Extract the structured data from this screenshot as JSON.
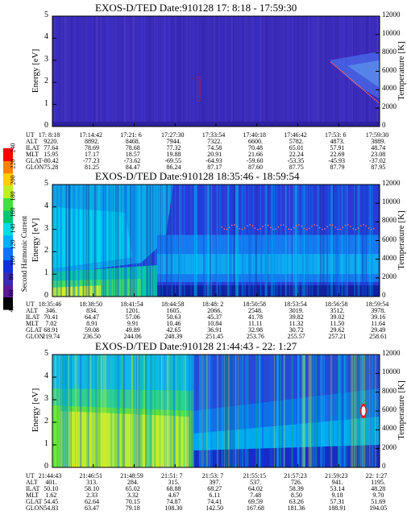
{
  "colors": {
    "bg_low": "#3a2ab8",
    "bg_mid": "#2f2fd8",
    "blue": "#1a4ad8",
    "cyan": "#00c8ff",
    "teal": "#10b0c0",
    "green": "#30e060",
    "yellow": "#e0f020",
    "orange": "#ffa000",
    "red": "#ff1010"
  },
  "colorbar": {
    "title": "Second Harmonic Current",
    "ticks": [
      "40",
      "60",
      "80",
      "100",
      "120",
      "140",
      "160",
      "180",
      "200",
      "220",
      "240"
    ],
    "colors": [
      "#000000",
      "#5a1a9a",
      "#3a2ab8",
      "#1030e0",
      "#1070ff",
      "#00b0ff",
      "#00e0e0",
      "#00c870",
      "#40e040",
      "#c0f020",
      "#ffd000",
      "#ff8000",
      "#ff0000"
    ]
  },
  "panels": [
    {
      "title": "EXOS-D/TED   Date:910128  17: 8:18 - 17:59:30",
      "ylabel": "Energy [eV]",
      "rlabel": "Temperature [K]",
      "yticks": [
        "0",
        "1",
        "2",
        "3",
        "4",
        "5"
      ],
      "rticks": [
        "0",
        "2000",
        "4000",
        "6000",
        "8000",
        "10000",
        "12000"
      ],
      "rows": [
        "UT",
        "ALT",
        "ILAT",
        "MLT",
        "GLAT",
        "GLON"
      ],
      "columns": [
        [
          "17: 8:18",
          "9220.",
          "77.64",
          "15.95",
          "-80.42",
          "75.28"
        ],
        [
          "17:14:42",
          "8892.",
          "78.69",
          "17.17",
          "-77.23",
          "81.25"
        ],
        [
          "17:21: 6",
          "8468.",
          "78.68",
          "18.57",
          "-73.62",
          "84.47"
        ],
        [
          "17:27:30",
          "7944.",
          "77.32",
          "19.88",
          "-69.55",
          "86.24"
        ],
        [
          "17:33:54",
          "7322.",
          "74.58",
          "20.91",
          "-64.93",
          "87.17"
        ],
        [
          "17:40:18",
          "6600.",
          "70.48",
          "21.66",
          "-59.60",
          "87.60"
        ],
        [
          "17:46:42",
          "5782.",
          "65.01",
          "22.24",
          "-53.35",
          "87.75"
        ],
        [
          "17:53: 6",
          "4873.",
          "57.91",
          "22.69",
          "-45.93",
          "87.79"
        ],
        [
          "17:59:30",
          "3889.",
          "48.74",
          "23.08",
          "-37.02",
          "87.95"
        ]
      ]
    },
    {
      "title": "EXOS-D/TED   Date:910128  18:35:46 - 18:59:54",
      "ylabel": "Energy [eV]",
      "rlabel": "Temperature [K]",
      "yticks": [
        "0",
        "1",
        "2",
        "3",
        "4",
        "5"
      ],
      "rticks": [
        "0",
        "2000",
        "4000",
        "6000",
        "8000",
        "10000",
        "12000"
      ],
      "rows": [
        "UT",
        "ALT",
        "ILAT",
        "MLT",
        "GLAT",
        "GLON"
      ],
      "columns": [
        [
          "18:35:46",
          "346.",
          "70.41",
          "7.02",
          "68.91",
          "219.74"
        ],
        [
          "18:38:50",
          "834.",
          "64.47",
          "8.91",
          "59.08",
          "236.50"
        ],
        [
          "18:41:54",
          "1201.",
          "57.06",
          "9.91",
          "49.89",
          "244.06"
        ],
        [
          "18:44:58",
          "1605.",
          "50.63",
          "10.46",
          "42.65",
          "248.39"
        ],
        [
          "18:48: 2",
          "2066.",
          "45.37",
          "10.84",
          "36.91",
          "251.45"
        ],
        [
          "18:50:58",
          "2548.",
          "41.78",
          "11.11",
          "32.98",
          "253.76"
        ],
        [
          "18:53:54",
          "3019.",
          "39.82",
          "11.32",
          "30.72",
          "255.57"
        ],
        [
          "18:56:58",
          "3512.",
          "39.02",
          "11.50",
          "29.62",
          "257.21"
        ],
        [
          "18:59:54",
          "3978.",
          "39.16",
          "11.64",
          "29.49",
          "258.61"
        ]
      ]
    },
    {
      "title": "EXOS-D/TED   Date:910128  21:44:43 - 22: 1:27",
      "ylabel": "Energy [eV]",
      "rlabel": "Temperature [K]",
      "yticks": [
        "0",
        "1",
        "2",
        "3",
        "4",
        "5"
      ],
      "rticks": [
        "0",
        "2000",
        "4000",
        "6000",
        "8000",
        "10000",
        "12000"
      ],
      "rows": [
        "UT",
        "ALT",
        "ILAT",
        "MLT",
        "GLAT",
        "GLON"
      ],
      "columns": [
        [
          "21:44:43",
          "401.",
          "50.10",
          "1.62",
          "54.45",
          "54.83"
        ],
        [
          "21:46:51",
          "313.",
          "58.10",
          "2.33",
          "62.64",
          "63.47"
        ],
        [
          "21:48:59",
          "284.",
          "65.02",
          "3.32",
          "70.15",
          "79.18"
        ],
        [
          "21:51: 7",
          "315.",
          "68.88",
          "4.67",
          "74.87",
          "108.30"
        ],
        [
          "21:53: 7",
          "397.",
          "68.27",
          "6.11",
          "74.41",
          "142.50"
        ],
        [
          "21:55:15",
          "537.",
          "64.02",
          "7.48",
          "69.59",
          "167.68"
        ],
        [
          "21:57:23",
          "726.",
          "58.39",
          "8.50",
          "63.26",
          "181.36"
        ],
        [
          "21:59:23",
          "941.",
          "53.14",
          "9.18",
          "57.31",
          "188.91"
        ],
        [
          "22: 1:27",
          "1195.",
          "48.28",
          "9.70",
          "51.69",
          "194.05"
        ]
      ]
    }
  ],
  "chart_data": [
    {
      "type": "heatmap",
      "title": "EXOS-D/TED   Date:910128  17: 8:18 - 17:59:30",
      "xlabel": "UT",
      "ylabel": "Energy [eV]",
      "y2label": "Temperature [K]",
      "ylim": [
        0,
        5
      ],
      "y2lim": [
        0,
        12000
      ],
      "x": [
        "17: 8:18",
        "17:14:42",
        "17:21: 6",
        "17:27:30",
        "17:33:54",
        "17:40:18",
        "17:46:42",
        "17:53: 6",
        "17:59:30"
      ]
    },
    {
      "type": "heatmap",
      "title": "EXOS-D/TED   Date:910128  18:35:46 - 18:59:54",
      "xlabel": "UT",
      "ylabel": "Energy [eV]",
      "y2label": "Temperature [K]",
      "ylim": [
        0,
        5
      ],
      "y2lim": [
        0,
        12000
      ],
      "x": [
        "18:35:46",
        "18:38:50",
        "18:41:54",
        "18:44:58",
        "18:48: 2",
        "18:50:58",
        "18:53:54",
        "18:56:58",
        "18:59:54"
      ]
    },
    {
      "type": "heatmap",
      "title": "EXOS-D/TED   Date:910128  21:44:43 - 22: 1:27",
      "xlabel": "UT",
      "ylabel": "Energy [eV]",
      "y2label": "Temperature [K]",
      "ylim": [
        0,
        5
      ],
      "y2lim": [
        0,
        12000
      ],
      "x": [
        "21:44:43",
        "21:46:51",
        "21:48:59",
        "21:51: 7",
        "21:53: 7",
        "21:55:15",
        "21:57:23",
        "21:59:23",
        "22: 1:27"
      ]
    }
  ]
}
